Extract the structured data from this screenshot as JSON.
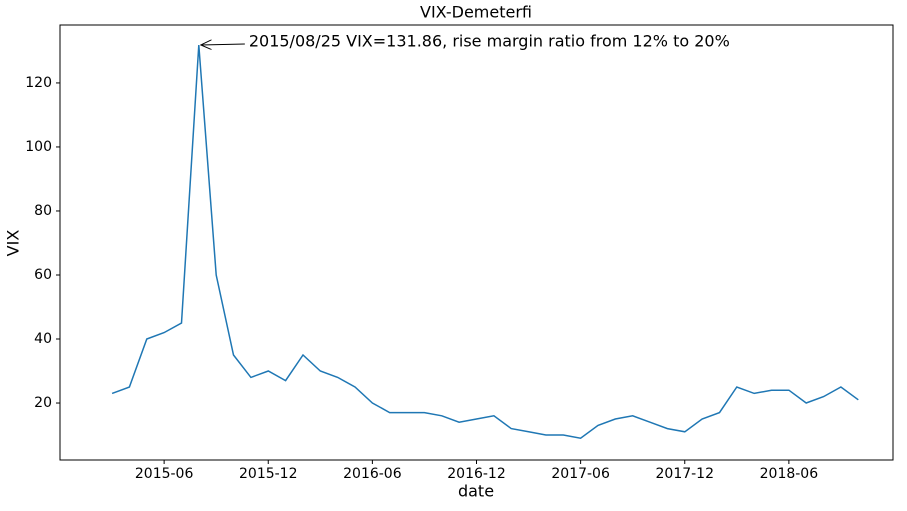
{
  "chart_data": {
    "type": "line",
    "title": "VIX-Demeterfi",
    "x_label": "date",
    "y_label": "VIX",
    "x": [
      "2015-03",
      "2015-04",
      "2015-05",
      "2015-06",
      "2015-07",
      "2015-08",
      "2015-09",
      "2015-10",
      "2015-11",
      "2015-12",
      "2016-01",
      "2016-02",
      "2016-03",
      "2016-04",
      "2016-05",
      "2016-06",
      "2016-07",
      "2016-08",
      "2016-09",
      "2016-10",
      "2016-11",
      "2016-12",
      "2017-01",
      "2017-02",
      "2017-03",
      "2017-04",
      "2017-05",
      "2017-06",
      "2017-07",
      "2017-08",
      "2017-09",
      "2017-10",
      "2017-11",
      "2017-12",
      "2018-01",
      "2018-02",
      "2018-03",
      "2018-04",
      "2018-05",
      "2018-06",
      "2018-07",
      "2018-08",
      "2018-09",
      "2018-10"
    ],
    "values": [
      23,
      25,
      40,
      42,
      45,
      131.86,
      60,
      35,
      28,
      30,
      27,
      35,
      30,
      28,
      25,
      20,
      17,
      17,
      17,
      16,
      14,
      15,
      16,
      12,
      11,
      10,
      10,
      9,
      13,
      15,
      16,
      14,
      12,
      11,
      15,
      17,
      25,
      23,
      24,
      24,
      20,
      22,
      25,
      21
    ],
    "color": "#1f77b4",
    "xlim": [
      "2014-12",
      "2018-12"
    ],
    "xticks": [
      "2015-06",
      "2015-12",
      "2016-06",
      "2016-12",
      "2017-06",
      "2017-12",
      "2018-06"
    ],
    "ylim": [
      2.2,
      138.1
    ],
    "yticks": [
      20,
      40,
      60,
      80,
      100,
      120
    ],
    "grid": false,
    "annotation": {
      "text": "2015/08/25 VIX=131.86, rise margin ratio from 12% to 20%",
      "x": "2015-08",
      "y": 131.86
    }
  }
}
